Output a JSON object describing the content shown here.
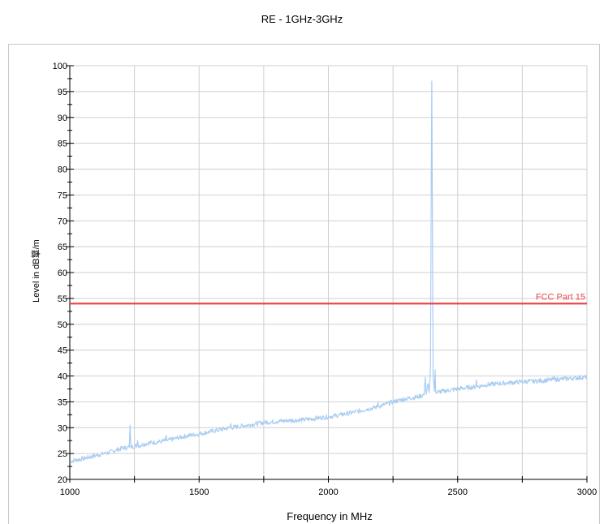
{
  "chart_data": {
    "type": "line",
    "title": "RE - 1GHz-3GHz",
    "xlabel": "Frequency in MHz",
    "ylabel": "Level in dB簞/m",
    "xlim": [
      1000,
      3000
    ],
    "ylim": [
      20,
      100
    ],
    "x_ticks": [
      1000,
      1500,
      2000,
      2500,
      3000
    ],
    "y_ticks": [
      20,
      25,
      30,
      35,
      40,
      45,
      50,
      55,
      60,
      65,
      70,
      75,
      80,
      85,
      90,
      95,
      100
    ],
    "grid": true,
    "colors": {
      "trace": "#a9cdf2",
      "limit": "#e8474c"
    },
    "limit_line": {
      "label": "FCC Part 15",
      "value": 54
    },
    "series": [
      {
        "x": [
          1000,
          1050,
          1100,
          1150,
          1200,
          1230,
          1233,
          1236,
          1240,
          1260,
          1262,
          1265,
          1280,
          1300,
          1350,
          1370,
          1372,
          1375,
          1400,
          1450,
          1500,
          1550,
          1600,
          1620,
          1622,
          1625,
          1650,
          1700,
          1750,
          1800,
          1850,
          1900,
          1950,
          2000,
          2050,
          2100,
          2150,
          2190,
          2192,
          2195,
          2250,
          2300,
          2350,
          2370,
          2375,
          2378,
          2385,
          2390,
          2395,
          2398,
          2400,
          2402,
          2405,
          2410,
          2413,
          2415,
          2418,
          2425,
          2450,
          2500,
          2550,
          2570,
          2572,
          2575,
          2600,
          2650,
          2700,
          2750,
          2800,
          2850,
          2870,
          2872,
          2875,
          2900,
          2950,
          3000
        ],
        "y": [
          23.5,
          24.0,
          24.6,
          25.2,
          26.0,
          26.2,
          30.5,
          26.3,
          26.3,
          26.5,
          27.5,
          26.5,
          26.7,
          27.0,
          27.3,
          27.5,
          28.5,
          27.5,
          27.8,
          28.4,
          28.8,
          29.3,
          29.8,
          30.0,
          30.8,
          30.0,
          30.2,
          30.6,
          31.0,
          31.2,
          31.4,
          31.5,
          31.8,
          32.1,
          32.5,
          33.0,
          33.6,
          34.0,
          35.0,
          34.1,
          35.0,
          35.6,
          36.0,
          36.4,
          39.8,
          36.4,
          38.5,
          36.8,
          42.0,
          80.0,
          97.0,
          75.0,
          40.0,
          37.0,
          41.2,
          37.0,
          36.8,
          36.9,
          37.1,
          37.5,
          37.8,
          37.9,
          39.2,
          37.9,
          38.2,
          38.5,
          38.7,
          38.9,
          39.0,
          39.2,
          39.3,
          39.8,
          39.3,
          39.4,
          39.6,
          39.8
        ]
      }
    ]
  }
}
